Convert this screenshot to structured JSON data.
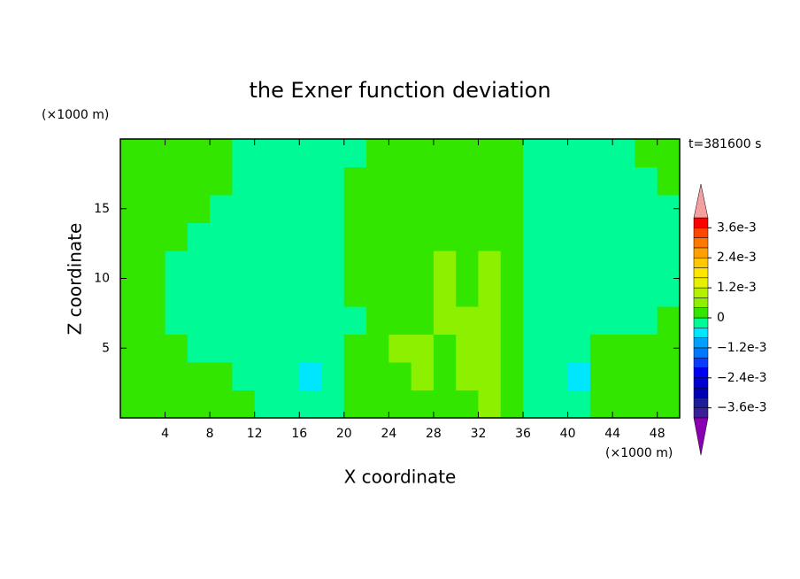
{
  "chart_data": {
    "type": "contour",
    "title": "the Exner function deviation",
    "x_label": "X coordinate",
    "y_label": "Z coordinate",
    "x_unit": "(×1000 m)",
    "y_unit": "(×1000 m)",
    "annotation": "t=381600 s",
    "xlim": [
      0,
      50
    ],
    "ylim": [
      0,
      20
    ],
    "xticks": [
      4,
      8,
      12,
      16,
      20,
      24,
      28,
      32,
      36,
      40,
      44,
      48
    ],
    "yticks": [
      5,
      10,
      15
    ],
    "x": [
      1,
      3,
      5,
      7,
      9,
      11,
      13,
      15,
      17,
      19,
      21,
      23,
      25,
      27,
      29,
      31,
      33,
      35,
      37,
      39,
      41,
      43,
      45,
      47,
      49
    ],
    "y": [
      1,
      3,
      5,
      7,
      9,
      11,
      13,
      15,
      17,
      19
    ],
    "z": [
      [
        0.0002,
        0.0002,
        0.0002,
        0.0002,
        0.0002,
        0.0002,
        -0.0002,
        -0.0002,
        -0.0002,
        -0.0002,
        0.0002,
        0.0002,
        0.0002,
        0.0002,
        0.0002,
        0.0002,
        0.0006,
        0.0002,
        -0.0002,
        -0.0002,
        -0.0002,
        0.0002,
        0.0002,
        0.0002,
        0.0002
      ],
      [
        0.0002,
        0.0002,
        0.0002,
        0.0002,
        0.0002,
        -0.0002,
        -0.0002,
        -0.0002,
        -0.0006,
        -0.0002,
        0.0002,
        0.0002,
        0.0002,
        0.0006,
        0.0002,
        0.0006,
        0.0006,
        0.0002,
        -0.0002,
        -0.0002,
        -0.0006,
        0.0002,
        0.0002,
        0.0002,
        0.0002
      ],
      [
        0.0002,
        0.0002,
        0.0002,
        -0.0002,
        -0.0002,
        -0.0002,
        -0.0002,
        -0.0002,
        -0.0002,
        -0.0002,
        0.0002,
        0.0002,
        0.0006,
        0.0006,
        0.0002,
        0.0006,
        0.0006,
        0.0002,
        -0.0002,
        -0.0002,
        -0.0002,
        0.0002,
        0.0002,
        0.0002,
        0.0002
      ],
      [
        0.0002,
        0.0002,
        -0.0002,
        -0.0002,
        -0.0002,
        -0.0002,
        -0.0002,
        -0.0002,
        -0.0002,
        -0.0002,
        -0.0002,
        0.0002,
        0.0002,
        0.0002,
        0.0006,
        0.0006,
        0.0006,
        0.0002,
        -0.0002,
        -0.0002,
        -0.0002,
        -0.0002,
        -0.0002,
        -0.0002,
        0.0002
      ],
      [
        0.0002,
        0.0002,
        -0.0002,
        -0.0002,
        -0.0002,
        -0.0002,
        -0.0002,
        -0.0002,
        -0.0002,
        -0.0002,
        0.0002,
        0.0002,
        0.0002,
        0.0002,
        0.0006,
        0.0002,
        0.0006,
        0.0002,
        -0.0002,
        -0.0002,
        -0.0002,
        -0.0002,
        -0.0002,
        -0.0002,
        -0.0002
      ],
      [
        0.0002,
        0.0002,
        -0.0002,
        -0.0002,
        -0.0002,
        -0.0002,
        -0.0002,
        -0.0002,
        -0.0002,
        -0.0002,
        0.0002,
        0.0002,
        0.0002,
        0.0002,
        0.0006,
        0.0002,
        0.0006,
        0.0002,
        -0.0002,
        -0.0002,
        -0.0002,
        -0.0002,
        -0.0002,
        -0.0002,
        -0.0002
      ],
      [
        0.0002,
        0.0002,
        0.0002,
        -0.0002,
        -0.0002,
        -0.0002,
        -0.0002,
        -0.0002,
        -0.0002,
        -0.0002,
        0.0002,
        0.0002,
        0.0002,
        0.0002,
        0.0002,
        0.0002,
        0.0002,
        0.0002,
        -0.0002,
        -0.0002,
        -0.0002,
        -0.0002,
        -0.0002,
        -0.0002,
        -0.0002
      ],
      [
        0.0002,
        0.0002,
        0.0002,
        0.0002,
        -0.0002,
        -0.0002,
        -0.0002,
        -0.0002,
        -0.0002,
        -0.0002,
        0.0002,
        0.0002,
        0.0002,
        0.0002,
        0.0002,
        0.0002,
        0.0002,
        0.0002,
        -0.0002,
        -0.0002,
        -0.0002,
        -0.0002,
        -0.0002,
        -0.0002,
        -0.0002
      ],
      [
        0.0002,
        0.0002,
        0.0002,
        0.0002,
        0.0002,
        -0.0002,
        -0.0002,
        -0.0002,
        -0.0002,
        -0.0002,
        0.0002,
        0.0002,
        0.0002,
        0.0002,
        0.0002,
        0.0002,
        0.0002,
        0.0002,
        -0.0002,
        -0.0002,
        -0.0002,
        -0.0002,
        -0.0002,
        -0.0002,
        0.0002
      ],
      [
        0.0002,
        0.0002,
        0.0002,
        0.0002,
        0.0002,
        -0.0002,
        -0.0002,
        -0.0002,
        -0.0002,
        -0.0002,
        -0.0002,
        0.0002,
        0.0002,
        0.0002,
        0.0002,
        0.0002,
        0.0002,
        0.0002,
        -0.0002,
        -0.0002,
        -0.0002,
        -0.0002,
        -0.0002,
        0.0002,
        0.0002
      ]
    ],
    "colorbar": {
      "levels": [
        -0.004,
        -0.0036,
        -0.0032,
        -0.0028,
        -0.0024,
        -0.002,
        -0.0016,
        -0.0012,
        -0.0008,
        -0.0004,
        0,
        0.0004,
        0.0008,
        0.0012,
        0.0016,
        0.002,
        0.0024,
        0.0028,
        0.0032,
        0.0036,
        0.004
      ],
      "colors": [
        "#3c1e96",
        "#1e1e9b",
        "#0000b4",
        "#0000d2",
        "#0000f0",
        "#0a3cff",
        "#0078ff",
        "#00a0ff",
        "#00e6ff",
        "#00fa96",
        "#32e600",
        "#8cf000",
        "#b4f000",
        "#e6f000",
        "#ffe600",
        "#ffc800",
        "#ffa000",
        "#ff7800",
        "#ff4600",
        "#ff0000"
      ],
      "extend_low_color": "#8c00b4",
      "extend_high_color": "#f5a0a0",
      "ticks": [
        {
          "value": 0.0036,
          "label": "3.6e-3"
        },
        {
          "value": 0.0024,
          "label": "2.4e-3"
        },
        {
          "value": 0.0012,
          "label": "1.2e-3"
        },
        0,
        {
          "value": -0.0012,
          "label": "−1.2e-3"
        },
        {
          "value": -0.0024,
          "label": "−2.4e-3"
        },
        {
          "value": -0.0036,
          "label": "−3.6e-3"
        }
      ]
    }
  }
}
